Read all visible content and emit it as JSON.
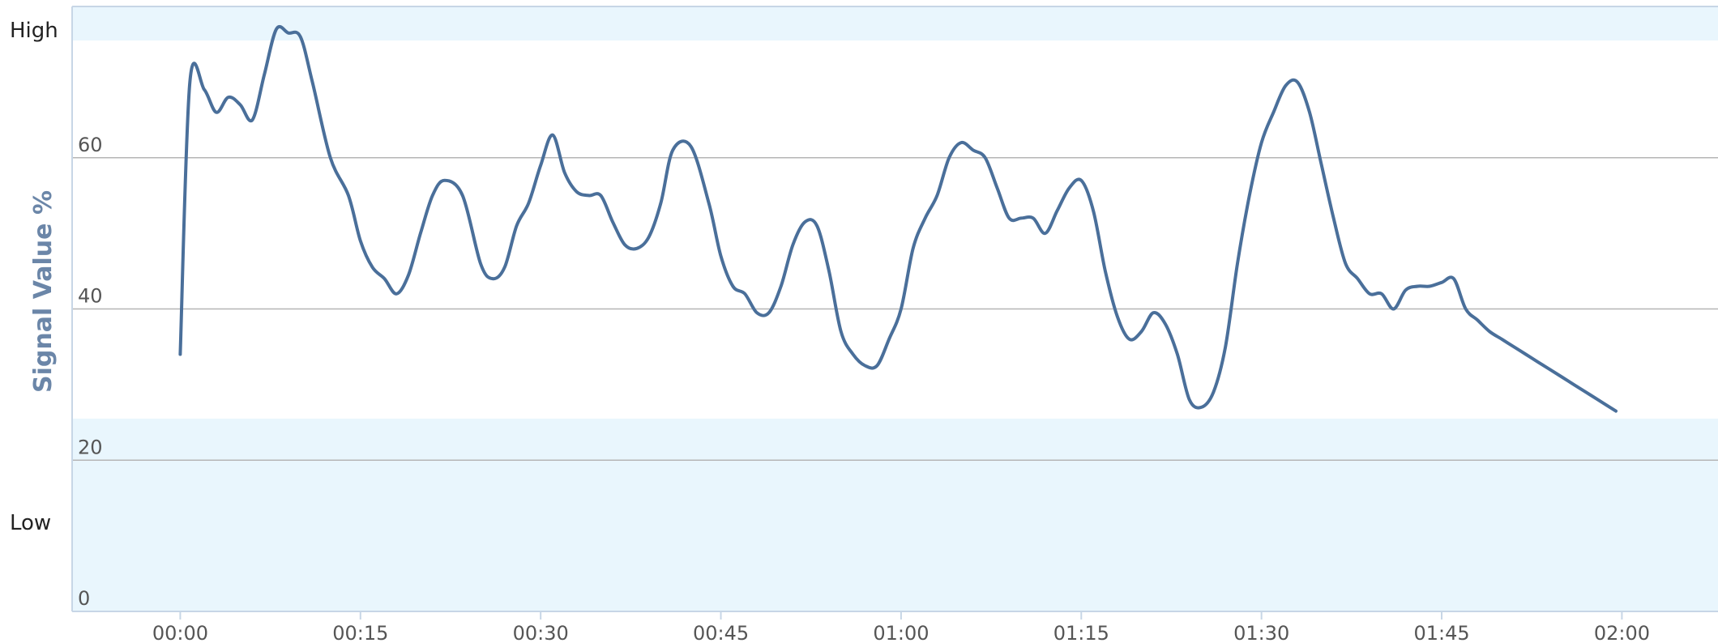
{
  "chart_data": {
    "type": "line",
    "ylabel": "Signal Value %",
    "xlabel": "",
    "title": "",
    "x_ticks": [
      "00:00",
      "00:15",
      "00:30",
      "00:45",
      "01:00",
      "01:15",
      "01:30",
      "01:45",
      "02:00"
    ],
    "x_range_minutes": [
      -9,
      128
    ],
    "y_ticks": [
      0,
      20,
      40,
      60
    ],
    "ylim": [
      0,
      80
    ],
    "band_labels": {
      "high": "High",
      "low": "Low"
    },
    "bands": [
      {
        "from": 75.5,
        "to": 80,
        "color": "#e9f6fd"
      },
      {
        "from": 0,
        "to": 25.5,
        "color": "#e9f6fd"
      }
    ],
    "grid": true,
    "colors": {
      "line": "#4a6f9a",
      "grid": "#b5b5b5",
      "band": "#e9f6fd",
      "axis": "#c7d6e6"
    },
    "series": [
      {
        "x": [
          0,
          0.8,
          2,
          3,
          4,
          5,
          6,
          7,
          8,
          9,
          10,
          11,
          12.5,
          14,
          15,
          16,
          17,
          18,
          19,
          20,
          21,
          22,
          23.5,
          25,
          26,
          27,
          28,
          29,
          30,
          31,
          32,
          33,
          34,
          35,
          36,
          37,
          38,
          39,
          40,
          41,
          42.5,
          44,
          45,
          46,
          47,
          48,
          49,
          50,
          51,
          52,
          53,
          54,
          55,
          56,
          57,
          58,
          59,
          60,
          61,
          62,
          63,
          64,
          65,
          66,
          67,
          68,
          69,
          70,
          71,
          72,
          73,
          74,
          75,
          76,
          77,
          78,
          79,
          80,
          81,
          82,
          83,
          84,
          85,
          86,
          87,
          88,
          89,
          90,
          91,
          92,
          93,
          94,
          95,
          96,
          97,
          98,
          99,
          100,
          101,
          102,
          103,
          104,
          105,
          106,
          107,
          108,
          109,
          110,
          111,
          112,
          113,
          114,
          115,
          116,
          117,
          118,
          119,
          119.5
        ],
        "y": [
          34,
          70,
          69,
          66,
          68,
          67,
          65,
          71,
          77,
          76.5,
          76,
          70,
          60,
          55,
          49,
          45.5,
          44,
          42,
          44.5,
          50,
          55,
          57,
          55,
          46,
          44,
          45.5,
          51,
          54,
          59,
          63,
          58,
          55.5,
          55,
          55,
          51.5,
          48.5,
          48,
          49.5,
          54,
          61,
          61.5,
          54,
          47,
          43,
          42,
          39.5,
          39.5,
          43,
          48.5,
          51.5,
          51,
          45,
          37,
          34,
          32.5,
          32.5,
          36,
          40,
          48,
          52,
          55,
          60,
          62,
          61,
          60,
          56,
          52,
          52,
          52,
          50,
          53,
          56,
          57,
          53,
          45,
          39,
          36,
          37,
          39.5,
          38,
          34,
          28,
          27,
          29,
          35,
          46,
          55,
          62,
          66,
          69.5,
          70,
          66,
          59,
          52,
          46,
          44,
          42,
          42,
          40,
          42.5,
          43,
          43,
          43.5,
          44,
          40,
          38.5,
          37,
          36,
          35,
          34,
          33,
          32,
          31,
          30,
          29,
          28,
          27,
          26.5
        ]
      }
    ]
  }
}
